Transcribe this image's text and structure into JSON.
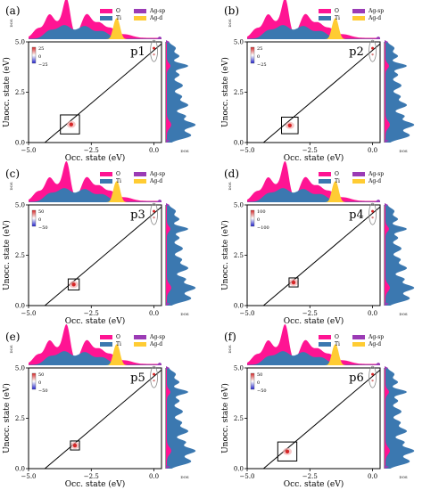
{
  "figure": {
    "layout": "3x2 grid of transition-contribution-map panels",
    "colors": {
      "O": "#ff1493",
      "Ti": "#3b78b0",
      "Ag-sp": "#9b3bb5",
      "Ag-d": "#ffcc33",
      "cmap_pos": "#d62728",
      "cmap_neg": "#1f1fcc",
      "box": "#000000"
    }
  },
  "chart_data": [
    {
      "type": "heatmap",
      "panel_label": "(a)",
      "map_label": "p1",
      "xlabel": "Occ. state (eV)",
      "ylabel": "Unocc. state (eV)",
      "xticks": [
        "−5.0",
        "−2.5",
        "0.0"
      ],
      "yticks": [
        "0.0",
        "2.5",
        "5.0"
      ],
      "xlim": [
        -5.0,
        0.3
      ],
      "ylim": [
        0.0,
        5.0
      ],
      "colorbar": {
        "ticks": [
          "25",
          "0",
          "−25"
        ],
        "range": [
          -25,
          25
        ]
      },
      "legend": [
        "O",
        "Ti",
        "Ag-sp",
        "Ag-d"
      ],
      "dos_label": "DOS",
      "box": {
        "occ": -3.35,
        "unocc": 0.9,
        "half_width": 0.38
      },
      "hotspot": {
        "occ": -3.3,
        "unocc": 0.9
      },
      "ellipse": {
        "occ": 0.0,
        "unocc": 4.55
      }
    },
    {
      "type": "heatmap",
      "panel_label": "(b)",
      "map_label": "p2",
      "xlabel": "Occ. state (eV)",
      "ylabel": "Unocc. state (eV)",
      "xticks": [
        "−5.0",
        "−2.5",
        "0.0"
      ],
      "yticks": [
        "0.0",
        "2.5",
        "5.0"
      ],
      "xlim": [
        -5.0,
        0.3
      ],
      "ylim": [
        0.0,
        5.0
      ],
      "colorbar": {
        "ticks": [
          "25",
          "0",
          "−25"
        ],
        "range": [
          -25,
          25
        ]
      },
      "legend": [
        "O",
        "Ti",
        "Ag-sp",
        "Ag-d"
      ],
      "dos_label": "DOS",
      "box": {
        "occ": -3.3,
        "unocc": 0.85,
        "half_width": 0.33
      },
      "hotspot": {
        "occ": -3.3,
        "unocc": 0.85
      },
      "ellipse": {
        "occ": 0.0,
        "unocc": 4.55
      }
    },
    {
      "type": "heatmap",
      "panel_label": "(c)",
      "map_label": "p3",
      "xlabel": "Occ. state (eV)",
      "ylabel": "Unocc. state (eV)",
      "xticks": [
        "−5.0",
        "−2.5",
        "0.0"
      ],
      "yticks": [
        "0.0",
        "2.5",
        "5.0"
      ],
      "xlim": [
        -5.0,
        0.3
      ],
      "ylim": [
        0.0,
        5.0
      ],
      "colorbar": {
        "ticks": [
          "50",
          "0",
          "−50"
        ],
        "range": [
          -50,
          50
        ]
      },
      "legend": [
        "O",
        "Ti",
        "Ag-sp",
        "Ag-d"
      ],
      "dos_label": "DOS",
      "box": {
        "occ": -3.2,
        "unocc": 1.05,
        "half_width": 0.22
      },
      "hotspot": {
        "occ": -3.2,
        "unocc": 1.05
      },
      "ellipse": {
        "occ": 0.0,
        "unocc": 4.55
      }
    },
    {
      "type": "heatmap",
      "panel_label": "(d)",
      "map_label": "p4",
      "xlabel": "Occ. state (eV)",
      "ylabel": "Unocc. state (eV)",
      "xticks": [
        "−5.0",
        "−2.5",
        "0.0"
      ],
      "yticks": [
        "0.0",
        "2.5",
        "5.0"
      ],
      "xlim": [
        -5.0,
        0.3
      ],
      "ylim": [
        0.0,
        5.0
      ],
      "colorbar": {
        "ticks": [
          "100",
          "0",
          "−100"
        ],
        "range": [
          -100,
          100
        ]
      },
      "legend": [
        "O",
        "Ti",
        "Ag-sp",
        "Ag-d"
      ],
      "dos_label": "DOS",
      "box": {
        "occ": -3.15,
        "unocc": 1.15,
        "half_width": 0.18
      },
      "hotspot": {
        "occ": -3.15,
        "unocc": 1.15
      },
      "ellipse": {
        "occ": 0.0,
        "unocc": 4.55
      }
    },
    {
      "type": "heatmap",
      "panel_label": "(e)",
      "map_label": "p5",
      "xlabel": "Occ. state (eV)",
      "ylabel": "Unocc. state (eV)",
      "xticks": [
        "−5.0",
        "−2.5",
        "0.0"
      ],
      "yticks": [
        "0.0",
        "2.5",
        "5.0"
      ],
      "xlim": [
        -5.0,
        0.3
      ],
      "ylim": [
        0.0,
        5.0
      ],
      "colorbar": {
        "ticks": [
          "50",
          "0",
          "−50"
        ],
        "range": [
          -50,
          50
        ]
      },
      "legend": [
        "O",
        "Ti",
        "Ag-sp",
        "Ag-d"
      ],
      "dos_label": "DOS",
      "box": {
        "occ": -3.15,
        "unocc": 1.15,
        "half_width": 0.18
      },
      "hotspot": {
        "occ": -3.15,
        "unocc": 1.15
      },
      "ellipse": {
        "occ": 0.0,
        "unocc": 4.55
      }
    },
    {
      "type": "heatmap",
      "panel_label": "(f)",
      "map_label": "p6",
      "xlabel": "Occ. state (eV)",
      "ylabel": "Unocc. state (eV)",
      "xticks": [
        "−5.0",
        "−2.5",
        "0.0"
      ],
      "yticks": [
        "0.0",
        "2.5",
        "5.0"
      ],
      "xlim": [
        -5.0,
        0.3
      ],
      "ylim": [
        0.0,
        5.0
      ],
      "colorbar": {
        "ticks": [
          "50",
          "0",
          "−50"
        ],
        "range": [
          -50,
          50
        ]
      },
      "legend": [
        "O",
        "Ti",
        "Ag-sp",
        "Ag-d"
      ],
      "dos_label": "DOS",
      "box": {
        "occ": -3.4,
        "unocc": 0.85,
        "half_width": 0.38
      },
      "hotspot": {
        "occ": -3.4,
        "unocc": 0.85
      },
      "ellipse": {
        "occ": 0.0,
        "unocc": 4.55
      }
    }
  ]
}
